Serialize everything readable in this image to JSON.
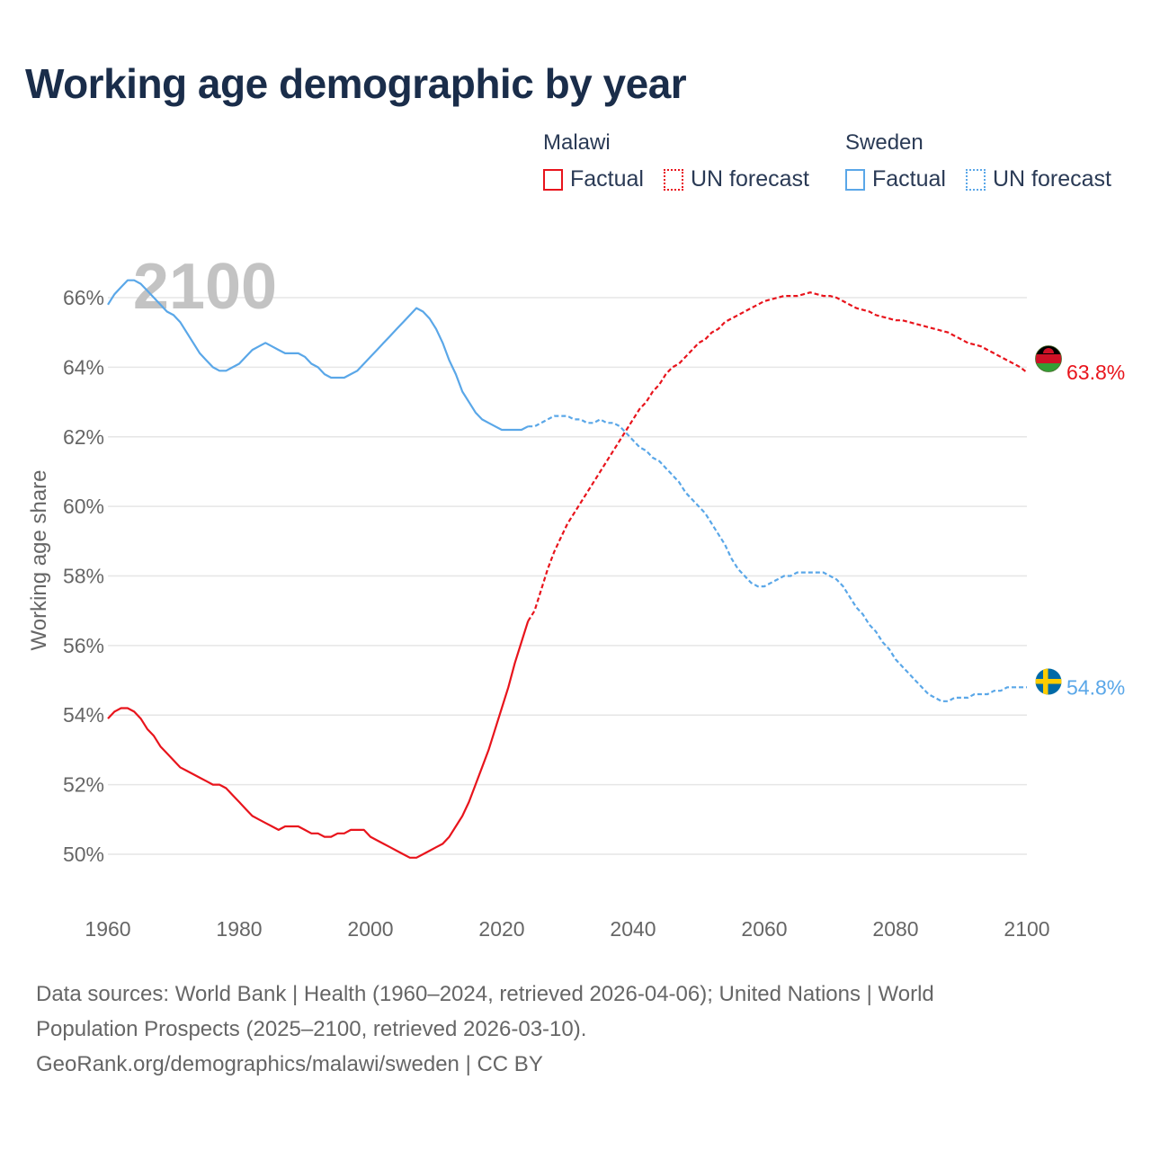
{
  "title": "Working age demographic by year",
  "legend": {
    "groups": [
      {
        "name": "Malawi",
        "color": "#e8141c",
        "factual_label": "Factual",
        "forecast_label": "UN forecast"
      },
      {
        "name": "Sweden",
        "color": "#5aa7e8",
        "factual_label": "Factual",
        "forecast_label": "UN forecast"
      }
    ]
  },
  "footer": {
    "line1": "Data sources: World Bank | Health (1960–2024, retrieved 2026-04-06); United Nations | World",
    "line2": "Population Prospects (2025–2100, retrieved 2026-03-10).",
    "line3": "GeoRank.org/demographics/malawi/sweden | CC BY"
  },
  "chart_data": {
    "type": "line",
    "title": "Working age demographic by year",
    "ylabel": "Working age share",
    "xlabel": "",
    "watermark_year": "2100",
    "xlim": [
      1960,
      2100
    ],
    "ylim": [
      48.5,
      67.5
    ],
    "x_ticks": [
      1960,
      1980,
      2000,
      2020,
      2040,
      2060,
      2080,
      2100
    ],
    "y_ticks": [
      50,
      52,
      54,
      56,
      58,
      60,
      62,
      64,
      66
    ],
    "y_tick_suffix": "%",
    "forecast_start": 2024,
    "series": [
      {
        "name": "Malawi",
        "color": "#e8141c",
        "end_label": "63.8%",
        "flag": "malawi",
        "points": [
          [
            1960,
            53.9
          ],
          [
            1961,
            54.1
          ],
          [
            1962,
            54.2
          ],
          [
            1963,
            54.2
          ],
          [
            1964,
            54.1
          ],
          [
            1965,
            53.9
          ],
          [
            1966,
            53.6
          ],
          [
            1967,
            53.4
          ],
          [
            1968,
            53.1
          ],
          [
            1969,
            52.9
          ],
          [
            1970,
            52.7
          ],
          [
            1971,
            52.5
          ],
          [
            1972,
            52.4
          ],
          [
            1973,
            52.3
          ],
          [
            1974,
            52.2
          ],
          [
            1975,
            52.1
          ],
          [
            1976,
            52.0
          ],
          [
            1977,
            52.0
          ],
          [
            1978,
            51.9
          ],
          [
            1979,
            51.7
          ],
          [
            1980,
            51.5
          ],
          [
            1981,
            51.3
          ],
          [
            1982,
            51.1
          ],
          [
            1983,
            51.0
          ],
          [
            1984,
            50.9
          ],
          [
            1985,
            50.8
          ],
          [
            1986,
            50.7
          ],
          [
            1987,
            50.8
          ],
          [
            1988,
            50.8
          ],
          [
            1989,
            50.8
          ],
          [
            1990,
            50.7
          ],
          [
            1991,
            50.6
          ],
          [
            1992,
            50.6
          ],
          [
            1993,
            50.5
          ],
          [
            1994,
            50.5
          ],
          [
            1995,
            50.6
          ],
          [
            1996,
            50.6
          ],
          [
            1997,
            50.7
          ],
          [
            1998,
            50.7
          ],
          [
            1999,
            50.7
          ],
          [
            2000,
            50.5
          ],
          [
            2001,
            50.4
          ],
          [
            2002,
            50.3
          ],
          [
            2003,
            50.2
          ],
          [
            2004,
            50.1
          ],
          [
            2005,
            50.0
          ],
          [
            2006,
            49.9
          ],
          [
            2007,
            49.9
          ],
          [
            2008,
            50.0
          ],
          [
            2009,
            50.1
          ],
          [
            2010,
            50.2
          ],
          [
            2011,
            50.3
          ],
          [
            2012,
            50.5
          ],
          [
            2013,
            50.8
          ],
          [
            2014,
            51.1
          ],
          [
            2015,
            51.5
          ],
          [
            2016,
            52.0
          ],
          [
            2017,
            52.5
          ],
          [
            2018,
            53.0
          ],
          [
            2019,
            53.6
          ],
          [
            2020,
            54.2
          ],
          [
            2021,
            54.8
          ],
          [
            2022,
            55.5
          ],
          [
            2023,
            56.1
          ],
          [
            2024,
            56.7
          ],
          [
            2025,
            57.0
          ],
          [
            2026,
            57.6
          ],
          [
            2027,
            58.2
          ],
          [
            2028,
            58.7
          ],
          [
            2029,
            59.1
          ],
          [
            2030,
            59.5
          ],
          [
            2031,
            59.8
          ],
          [
            2032,
            60.1
          ],
          [
            2033,
            60.4
          ],
          [
            2034,
            60.7
          ],
          [
            2035,
            61.0
          ],
          [
            2036,
            61.3
          ],
          [
            2037,
            61.6
          ],
          [
            2038,
            61.9
          ],
          [
            2039,
            62.2
          ],
          [
            2040,
            62.5
          ],
          [
            2041,
            62.8
          ],
          [
            2042,
            63.0
          ],
          [
            2043,
            63.3
          ],
          [
            2044,
            63.5
          ],
          [
            2045,
            63.8
          ],
          [
            2046,
            64.0
          ],
          [
            2047,
            64.1
          ],
          [
            2048,
            64.3
          ],
          [
            2049,
            64.5
          ],
          [
            2050,
            64.7
          ],
          [
            2051,
            64.8
          ],
          [
            2052,
            65.0
          ],
          [
            2053,
            65.1
          ],
          [
            2054,
            65.3
          ],
          [
            2055,
            65.4
          ],
          [
            2056,
            65.5
          ],
          [
            2057,
            65.6
          ],
          [
            2058,
            65.7
          ],
          [
            2059,
            65.8
          ],
          [
            2060,
            65.9
          ],
          [
            2061,
            65.95
          ],
          [
            2062,
            66.0
          ],
          [
            2063,
            66.05
          ],
          [
            2064,
            66.05
          ],
          [
            2065,
            66.05
          ],
          [
            2066,
            66.1
          ],
          [
            2067,
            66.15
          ],
          [
            2068,
            66.1
          ],
          [
            2069,
            66.05
          ],
          [
            2070,
            66.05
          ],
          [
            2071,
            66.0
          ],
          [
            2072,
            65.9
          ],
          [
            2073,
            65.8
          ],
          [
            2074,
            65.7
          ],
          [
            2075,
            65.65
          ],
          [
            2076,
            65.6
          ],
          [
            2077,
            65.5
          ],
          [
            2078,
            65.45
          ],
          [
            2079,
            65.4
          ],
          [
            2080,
            65.35
          ],
          [
            2081,
            65.35
          ],
          [
            2082,
            65.3
          ],
          [
            2083,
            65.25
          ],
          [
            2084,
            65.2
          ],
          [
            2085,
            65.15
          ],
          [
            2086,
            65.1
          ],
          [
            2087,
            65.05
          ],
          [
            2088,
            65.0
          ],
          [
            2089,
            64.9
          ],
          [
            2090,
            64.8
          ],
          [
            2091,
            64.7
          ],
          [
            2092,
            64.65
          ],
          [
            2093,
            64.6
          ],
          [
            2094,
            64.5
          ],
          [
            2095,
            64.4
          ],
          [
            2096,
            64.3
          ],
          [
            2097,
            64.2
          ],
          [
            2098,
            64.1
          ],
          [
            2099,
            64.0
          ],
          [
            2100,
            63.85
          ]
        ]
      },
      {
        "name": "Sweden",
        "color": "#5aa7e8",
        "end_label": "54.8%",
        "flag": "sweden",
        "points": [
          [
            1960,
            65.8
          ],
          [
            1961,
            66.1
          ],
          [
            1962,
            66.3
          ],
          [
            1963,
            66.5
          ],
          [
            1964,
            66.5
          ],
          [
            1965,
            66.4
          ],
          [
            1966,
            66.2
          ],
          [
            1967,
            66.0
          ],
          [
            1968,
            65.8
          ],
          [
            1969,
            65.6
          ],
          [
            1970,
            65.5
          ],
          [
            1971,
            65.3
          ],
          [
            1972,
            65.0
          ],
          [
            1973,
            64.7
          ],
          [
            1974,
            64.4
          ],
          [
            1975,
            64.2
          ],
          [
            1976,
            64.0
          ],
          [
            1977,
            63.9
          ],
          [
            1978,
            63.9
          ],
          [
            1979,
            64.0
          ],
          [
            1980,
            64.1
          ],
          [
            1981,
            64.3
          ],
          [
            1982,
            64.5
          ],
          [
            1983,
            64.6
          ],
          [
            1984,
            64.7
          ],
          [
            1985,
            64.6
          ],
          [
            1986,
            64.5
          ],
          [
            1987,
            64.4
          ],
          [
            1988,
            64.4
          ],
          [
            1989,
            64.4
          ],
          [
            1990,
            64.3
          ],
          [
            1991,
            64.1
          ],
          [
            1992,
            64.0
          ],
          [
            1993,
            63.8
          ],
          [
            1994,
            63.7
          ],
          [
            1995,
            63.7
          ],
          [
            1996,
            63.7
          ],
          [
            1997,
            63.8
          ],
          [
            1998,
            63.9
          ],
          [
            1999,
            64.1
          ],
          [
            2000,
            64.3
          ],
          [
            2001,
            64.5
          ],
          [
            2002,
            64.7
          ],
          [
            2003,
            64.9
          ],
          [
            2004,
            65.1
          ],
          [
            2005,
            65.3
          ],
          [
            2006,
            65.5
          ],
          [
            2007,
            65.7
          ],
          [
            2008,
            65.6
          ],
          [
            2009,
            65.4
          ],
          [
            2010,
            65.1
          ],
          [
            2011,
            64.7
          ],
          [
            2012,
            64.2
          ],
          [
            2013,
            63.8
          ],
          [
            2014,
            63.3
          ],
          [
            2015,
            63.0
          ],
          [
            2016,
            62.7
          ],
          [
            2017,
            62.5
          ],
          [
            2018,
            62.4
          ],
          [
            2019,
            62.3
          ],
          [
            2020,
            62.2
          ],
          [
            2021,
            62.2
          ],
          [
            2022,
            62.2
          ],
          [
            2023,
            62.2
          ],
          [
            2024,
            62.3
          ],
          [
            2025,
            62.3
          ],
          [
            2026,
            62.4
          ],
          [
            2027,
            62.5
          ],
          [
            2028,
            62.6
          ],
          [
            2029,
            62.6
          ],
          [
            2030,
            62.6
          ],
          [
            2031,
            62.5
          ],
          [
            2032,
            62.5
          ],
          [
            2033,
            62.4
          ],
          [
            2034,
            62.4
          ],
          [
            2035,
            62.5
          ],
          [
            2036,
            62.4
          ],
          [
            2037,
            62.4
          ],
          [
            2038,
            62.3
          ],
          [
            2039,
            62.1
          ],
          [
            2040,
            61.9
          ],
          [
            2041,
            61.7
          ],
          [
            2042,
            61.6
          ],
          [
            2043,
            61.4
          ],
          [
            2044,
            61.3
          ],
          [
            2045,
            61.1
          ],
          [
            2046,
            60.9
          ],
          [
            2047,
            60.7
          ],
          [
            2048,
            60.4
          ],
          [
            2049,
            60.2
          ],
          [
            2050,
            60.0
          ],
          [
            2051,
            59.8
          ],
          [
            2052,
            59.5
          ],
          [
            2053,
            59.2
          ],
          [
            2054,
            58.9
          ],
          [
            2055,
            58.5
          ],
          [
            2056,
            58.2
          ],
          [
            2057,
            58.0
          ],
          [
            2058,
            57.8
          ],
          [
            2059,
            57.7
          ],
          [
            2060,
            57.7
          ],
          [
            2061,
            57.8
          ],
          [
            2062,
            57.9
          ],
          [
            2063,
            58.0
          ],
          [
            2064,
            58.0
          ],
          [
            2065,
            58.1
          ],
          [
            2066,
            58.1
          ],
          [
            2067,
            58.1
          ],
          [
            2068,
            58.1
          ],
          [
            2069,
            58.1
          ],
          [
            2070,
            58.0
          ],
          [
            2071,
            57.9
          ],
          [
            2072,
            57.7
          ],
          [
            2073,
            57.4
          ],
          [
            2074,
            57.1
          ],
          [
            2075,
            56.9
          ],
          [
            2076,
            56.6
          ],
          [
            2077,
            56.4
          ],
          [
            2078,
            56.1
          ],
          [
            2079,
            55.9
          ],
          [
            2080,
            55.6
          ],
          [
            2081,
            55.4
          ],
          [
            2082,
            55.2
          ],
          [
            2083,
            55.0
          ],
          [
            2084,
            54.8
          ],
          [
            2085,
            54.6
          ],
          [
            2086,
            54.5
          ],
          [
            2087,
            54.4
          ],
          [
            2088,
            54.4
          ],
          [
            2089,
            54.5
          ],
          [
            2090,
            54.5
          ],
          [
            2091,
            54.5
          ],
          [
            2092,
            54.6
          ],
          [
            2093,
            54.6
          ],
          [
            2094,
            54.6
          ],
          [
            2095,
            54.7
          ],
          [
            2096,
            54.7
          ],
          [
            2097,
            54.8
          ],
          [
            2098,
            54.8
          ],
          [
            2099,
            54.8
          ],
          [
            2100,
            54.8
          ]
        ]
      }
    ]
  }
}
